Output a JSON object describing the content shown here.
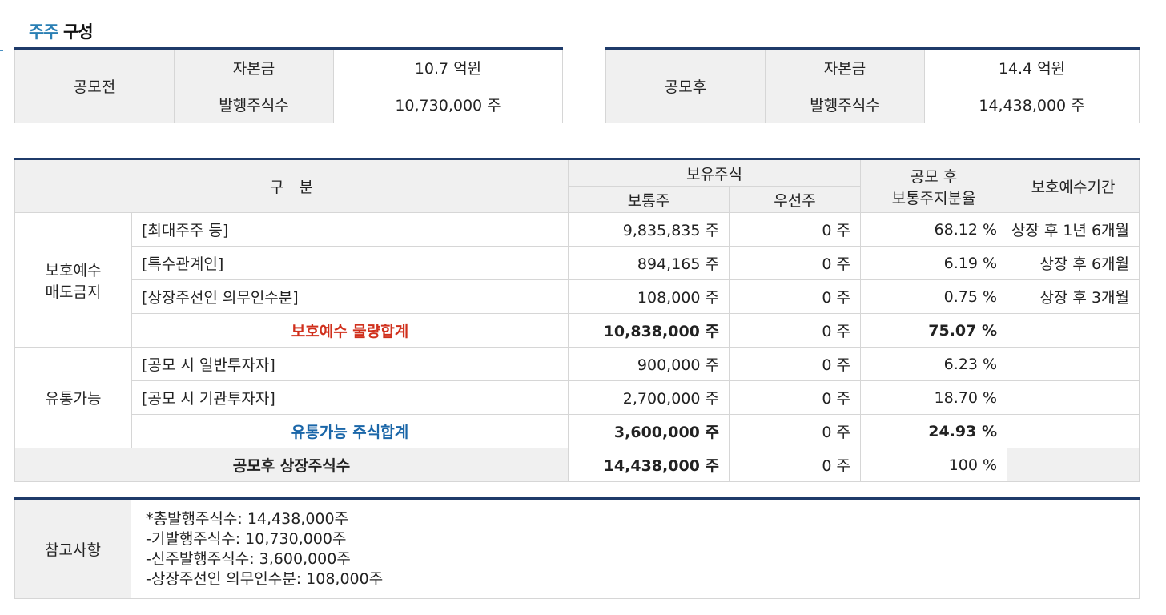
{
  "section_title": {
    "highlight": "주주",
    "rest": "구성"
  },
  "before": {
    "label": "공모전",
    "capital_label": "자본금",
    "capital_value": "10.7 억원",
    "shares_label": "발행주식수",
    "shares_value": "10,730,000 주"
  },
  "after": {
    "label": "공모후",
    "capital_label": "자본금",
    "capital_value": "14.4 억원",
    "shares_label": "발행주식수",
    "shares_value": "14,438,000 주"
  },
  "table": {
    "headers": {
      "category": "구　분",
      "holdings": "보유주식",
      "common": "보통주",
      "preferred": "우선주",
      "ratio_line1": "공모 후",
      "ratio_line2": "보통주지분율",
      "lockup": "보호예수기간"
    },
    "lock_group": {
      "label_line1": "보호예수",
      "label_line2": "매도금지",
      "rows": [
        {
          "name": "[최대주주 등]",
          "common": "9,835,835 주",
          "preferred": "0 주",
          "ratio": "68.12 %",
          "period": "상장 후 1년 6개월"
        },
        {
          "name": "[특수관계인]",
          "common": "894,165 주",
          "preferred": "0 주",
          "ratio": "6.19 %",
          "period": "상장 후 6개월"
        },
        {
          "name": "[상장주선인 의무인수분]",
          "common": "108,000 주",
          "preferred": "0 주",
          "ratio": "0.75 %",
          "period": "상장 후 3개월"
        }
      ],
      "subtotal": {
        "name": "보호예수 물량합계",
        "common": "10,838,000 주",
        "preferred": "0 주",
        "ratio": "75.07 %"
      }
    },
    "float_group": {
      "label": "유통가능",
      "rows": [
        {
          "name": "[공모 시 일반투자자]",
          "common": "900,000 주",
          "preferred": "0 주",
          "ratio": "6.23 %"
        },
        {
          "name": "[공모 시 기관투자자]",
          "common": "2,700,000 주",
          "preferred": "0 주",
          "ratio": "18.70 %"
        }
      ],
      "subtotal": {
        "name": "유통가능 주식합계",
        "common": "3,600,000 주",
        "preferred": "0 주",
        "ratio": "24.93 %"
      }
    },
    "total": {
      "name": "공모후 상장주식수",
      "common": "14,438,000 주",
      "preferred": "0 주",
      "ratio": "100 %"
    }
  },
  "notes": {
    "label": "참고사항",
    "lines": [
      "*총발행주식수: 14,438,000주",
      "-기발행주식수: 10,730,000주",
      "-신주발행주식수: 3,600,000주",
      "-상장주선인 의무인수분: 108,000주"
    ]
  }
}
